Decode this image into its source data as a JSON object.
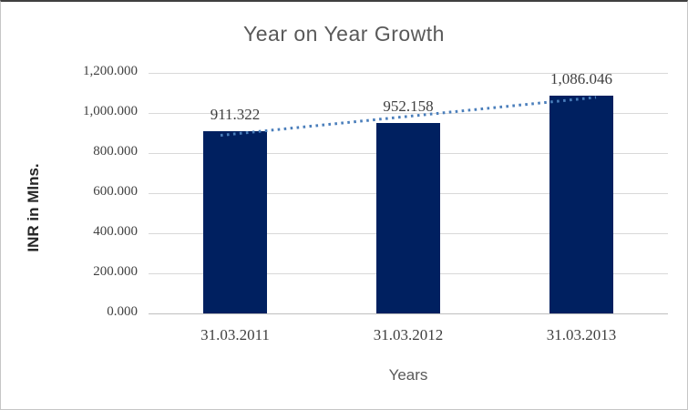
{
  "chart_data": {
    "type": "bar",
    "title": "Year on Year Growth",
    "xlabel": "Years",
    "ylabel": "INR in Mlns.",
    "categories": [
      "31.03.2011",
      "31.03.2012",
      "31.03.2013"
    ],
    "values": [
      911.322,
      952.158,
      1086.046
    ],
    "data_labels": [
      "911.322",
      "952.158",
      "1,086.046"
    ],
    "ylim": [
      0,
      1200
    ],
    "ytick_step": 200,
    "ytick_labels": [
      "0.000",
      "200.000",
      "400.000",
      "600.000",
      "800.000",
      "1,000.000",
      "1,200.000"
    ],
    "grid": true,
    "legend": false,
    "trendline": {
      "type": "linear",
      "style": "dotted"
    },
    "colors": {
      "bar": "#002060",
      "trendline": "#4a7ebb",
      "gridline": "#d9d9d9",
      "axis_line": "#bfbfbf",
      "title_text": "#595959",
      "axis_title_text": "#262626",
      "tick_text": "#404040"
    }
  }
}
